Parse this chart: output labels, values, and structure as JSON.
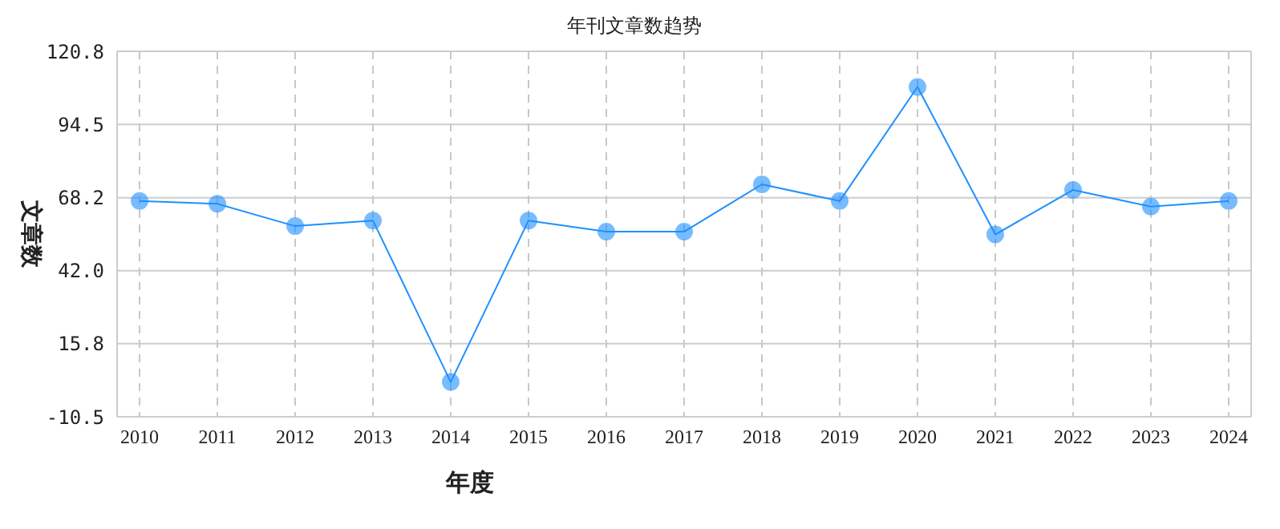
{
  "chart_data": {
    "type": "line",
    "title": "年刊文章数趋势",
    "xlabel": "年度",
    "ylabel": "文章数",
    "categories": [
      "2010",
      "2011",
      "2012",
      "2013",
      "2014",
      "2015",
      "2016",
      "2017",
      "2018",
      "2019",
      "2020",
      "2021",
      "2022",
      "2023",
      "2024"
    ],
    "series": [
      {
        "color": "#1e90ff",
        "values": [
          67,
          66,
          58,
          60,
          2,
          60,
          56,
          56,
          73,
          67,
          108,
          55,
          71,
          65,
          67
        ]
      }
    ],
    "ylim": [
      -10.5,
      120.8
    ],
    "yticks": [
      -10.5,
      15.8,
      {
        "value": 42,
        "label": "42.0"
      },
      68.2,
      94.5,
      120.8
    ],
    "grid": true,
    "marker": "circle",
    "line_style": "solid"
  }
}
